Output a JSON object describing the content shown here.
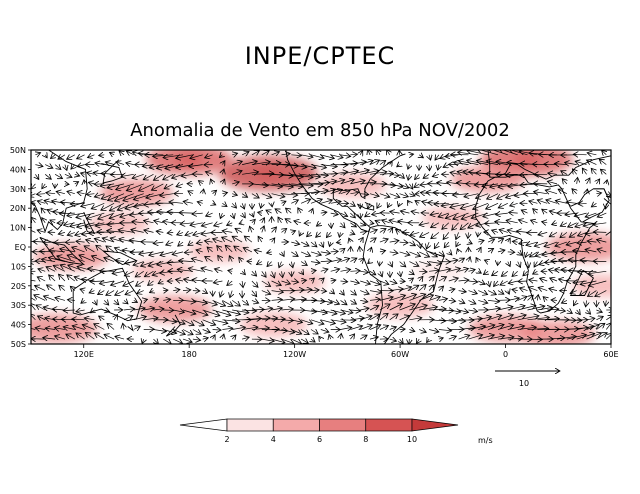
{
  "header": {
    "organization": "INPE/CPTEC"
  },
  "chart_data": {
    "type": "vector-map",
    "title": "Anomalia de Vento em 850 hPa NOV/2002",
    "y_ticks": [
      "50N",
      "40N",
      "30N",
      "20N",
      "10N",
      "EQ",
      "10S",
      "20S",
      "30S",
      "40S",
      "50S"
    ],
    "y_values": [
      50,
      40,
      30,
      20,
      10,
      0,
      -10,
      -20,
      -30,
      -40,
      -50
    ],
    "x_ticks": [
      "120E",
      "180",
      "120W",
      "60W",
      "0",
      "60E"
    ],
    "x_values": [
      120,
      180,
      240,
      300,
      360,
      420
    ],
    "xlim": [
      90,
      420
    ],
    "ylim": [
      -50,
      50
    ],
    "reference_vector": {
      "label": "10",
      "value": 10
    },
    "colorbar": {
      "ticks": [
        "2",
        "4",
        "6",
        "8",
        "10"
      ],
      "values": [
        2,
        4,
        6,
        8,
        10
      ],
      "unit": "m/s",
      "colors": [
        "#ffffff",
        "#fbe3e3",
        "#f4aaaa",
        "#e77f7f",
        "#d65353",
        "#c43a3a"
      ]
    },
    "anomaly_regions": [
      {
        "lon": 225,
        "lat": 38,
        "speed": 10
      },
      {
        "lon": 372,
        "lat": 45,
        "speed": 9
      },
      {
        "lon": 180,
        "lat": 45,
        "speed": 8
      },
      {
        "lon": 150,
        "lat": 28,
        "speed": 6
      },
      {
        "lon": 350,
        "lat": 35,
        "speed": 6
      },
      {
        "lon": 113,
        "lat": -5,
        "speed": 6
      },
      {
        "lon": 406,
        "lat": 0,
        "speed": 7
      },
      {
        "lon": 105,
        "lat": -42,
        "speed": 7
      },
      {
        "lon": 172,
        "lat": -32,
        "speed": 6
      },
      {
        "lon": 228,
        "lat": -40,
        "speed": 5
      },
      {
        "lon": 360,
        "lat": -42,
        "speed": 6
      },
      {
        "lon": 300,
        "lat": -30,
        "speed": 5
      },
      {
        "lon": 390,
        "lat": -45,
        "speed": 6
      },
      {
        "lon": 273,
        "lat": 32,
        "speed": 5
      },
      {
        "lon": 197,
        "lat": -2,
        "speed": 4
      },
      {
        "lon": 240,
        "lat": -18,
        "speed": 4
      },
      {
        "lon": 140,
        "lat": 12,
        "speed": 4
      },
      {
        "lon": 330,
        "lat": 15,
        "speed": 4
      },
      {
        "lon": 415,
        "lat": -20,
        "speed": 4
      },
      {
        "lon": 322,
        "lat": -12,
        "speed": 3
      },
      {
        "lon": 165,
        "lat": -12,
        "speed": 4
      }
    ]
  }
}
